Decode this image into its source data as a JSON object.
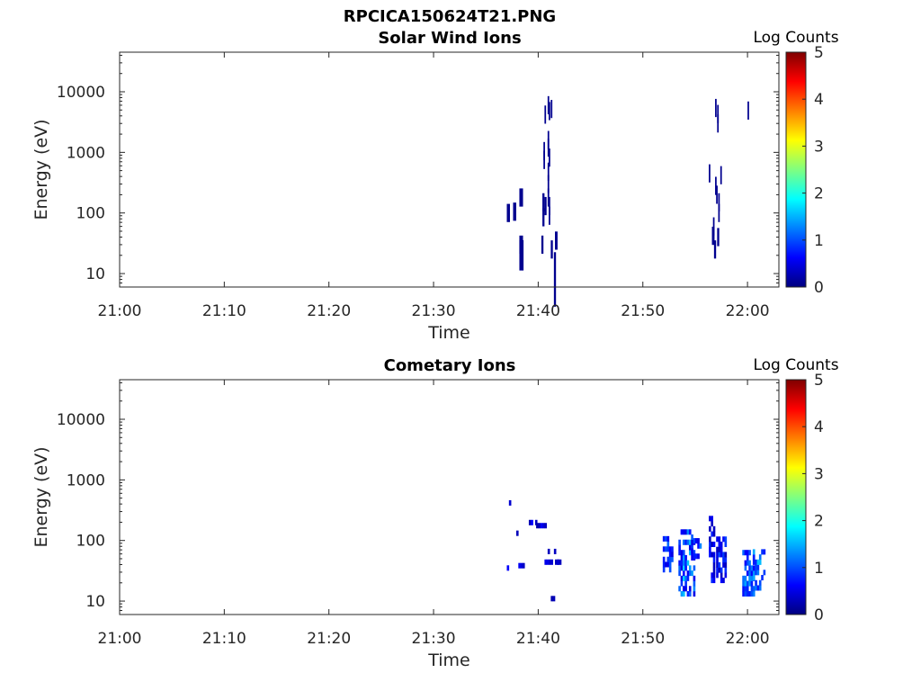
{
  "figure": {
    "title": "RPCICA150624T21.PNG"
  },
  "colormap": {
    "name": "jet",
    "stops": [
      "#00007f",
      "#0000ff",
      "#00ffff",
      "#ffff00",
      "#ff0000",
      "#7f0000"
    ]
  },
  "chart_data": [
    {
      "type": "heatmap",
      "title": "Solar Wind Ions",
      "xlabel": "Time",
      "ylabel": "Energy (eV)",
      "x_unit": "minutes after 21:00",
      "xlim": [
        0,
        63
      ],
      "ylim": [
        6,
        45000
      ],
      "yscale": "log",
      "x_ticks": [
        0,
        10,
        20,
        30,
        40,
        50,
        60
      ],
      "x_tick_labels": [
        "21:00",
        "21:10",
        "21:20",
        "21:30",
        "21:40",
        "21:50",
        "22:00"
      ],
      "y_ticks": [
        10,
        100,
        1000,
        10000
      ],
      "y_tick_labels": [
        "10",
        "100",
        "1000",
        "10000"
      ],
      "colorbar": {
        "title": "Log Counts",
        "min": 0,
        "max": 5,
        "ticks": [
          "0",
          "1",
          "2",
          "3",
          "4",
          "5"
        ]
      },
      "cells": [
        [
          37.0,
          100,
          0.3,
          0.3
        ],
        [
          37.6,
          105,
          0.3,
          0.3
        ],
        [
          38.2,
          180,
          0.35,
          0.3
        ],
        [
          38.2,
          30,
          0.35,
          0.3
        ],
        [
          38.2,
          20,
          0.4,
          0.5
        ],
        [
          40.3,
          30,
          0.2,
          0.3
        ],
        [
          40.4,
          150,
          0.2,
          0.3
        ],
        [
          40.4,
          85,
          0.2,
          0.3
        ],
        [
          40.6,
          130,
          0.2,
          0.3
        ],
        [
          40.5,
          1050,
          0.15,
          0.3
        ],
        [
          40.5,
          750,
          0.15,
          0.3
        ],
        [
          40.6,
          4200,
          0.15,
          0.3
        ],
        [
          40.9,
          6000,
          0.15,
          0.3
        ],
        [
          40.9,
          1600,
          0.15,
          0.3
        ],
        [
          40.9,
          1200,
          0.15,
          0.3
        ],
        [
          40.9,
          480,
          0.15,
          0.3
        ],
        [
          40.9,
          300,
          0.15,
          0.3
        ],
        [
          40.9,
          180,
          0.15,
          0.3
        ],
        [
          41.0,
          820,
          0.15,
          0.3
        ],
        [
          41.0,
          130,
          0.15,
          0.3
        ],
        [
          41.0,
          90,
          0.15,
          0.3
        ],
        [
          41.0,
          4800,
          0.15,
          0.3
        ],
        [
          41.2,
          5200,
          0.15,
          0.3
        ],
        [
          41.2,
          25,
          0.2,
          0.3
        ],
        [
          41.6,
          35,
          0.25,
          0.3
        ],
        [
          41.5,
          8,
          0.2,
          0.9
        ],
        [
          56.3,
          450,
          0.15,
          0.3
        ],
        [
          56.6,
          42,
          0.25,
          0.3
        ],
        [
          56.7,
          60,
          0.15,
          0.3
        ],
        [
          56.8,
          25,
          0.2,
          0.3
        ],
        [
          56.9,
          5400,
          0.15,
          0.3
        ],
        [
          56.9,
          280,
          0.15,
          0.3
        ],
        [
          57.0,
          200,
          0.15,
          0.3
        ],
        [
          57.1,
          4300,
          0.15,
          0.3
        ],
        [
          57.1,
          3000,
          0.15,
          0.3
        ],
        [
          57.1,
          40,
          0.2,
          0.3
        ],
        [
          57.2,
          150,
          0.15,
          0.3
        ],
        [
          57.2,
          100,
          0.15,
          0.3
        ],
        [
          57.4,
          420,
          0.15,
          0.3
        ],
        [
          60.0,
          4900,
          0.15,
          0.3
        ]
      ]
    },
    {
      "type": "heatmap",
      "title": "Cometary Ions",
      "xlabel": "Time",
      "ylabel": "Energy (eV)",
      "x_unit": "minutes after 21:00",
      "xlim": [
        0,
        63
      ],
      "ylim": [
        6,
        45000
      ],
      "yscale": "log",
      "x_ticks": [
        0,
        10,
        20,
        30,
        40,
        50,
        60
      ],
      "x_tick_labels": [
        "21:00",
        "21:10",
        "21:20",
        "21:30",
        "21:40",
        "21:50",
        "22:00"
      ],
      "y_ticks": [
        10,
        100,
        1000,
        10000
      ],
      "y_tick_labels": [
        "10",
        "100",
        "1000",
        "10000"
      ],
      "colorbar": {
        "title": "Log Counts",
        "min": 0,
        "max": 5,
        "ticks": [
          "0",
          "1",
          "2",
          "3",
          "4",
          "5"
        ]
      },
      "blobs": [
        [
          37.0,
          380,
          6,
          0.5,
          0.15,
          [
            0.2,
            0.6
          ]
        ],
        [
          36.6,
          32,
          8,
          0.9,
          0.1,
          [
            0.2,
            0.7
          ]
        ],
        [
          37.9,
          35,
          10,
          0.9,
          0.15,
          [
            0.3,
            0.7
          ]
        ],
        [
          37.5,
          120,
          40,
          0.6,
          0.05,
          [
            0.2,
            0.5
          ]
        ],
        [
          38.9,
          180,
          45,
          1.2,
          0.15,
          [
            0.2,
            0.7
          ]
        ],
        [
          39.8,
          160,
          60,
          1.0,
          0.15,
          [
            0.2,
            0.6
          ]
        ],
        [
          40.5,
          60,
          12,
          1.2,
          0.15,
          [
            0.2,
            0.5
          ]
        ],
        [
          40.6,
          40,
          25,
          1.4,
          0.2,
          [
            0.3,
            0.7
          ]
        ],
        [
          41.0,
          10,
          7,
          0.6,
          0.05,
          [
            0.2,
            0.5
          ]
        ],
        [
          41.8,
          40,
          45,
          0.6,
          0.15,
          [
            0.2,
            0.5
          ]
        ],
        [
          51.9,
          30,
          120,
          0.9,
          0.2,
          [
            0.5,
            1.2
          ]
        ],
        [
          53.4,
          12,
          150,
          1.6,
          0.2,
          [
            0.5,
            1.7
          ]
        ],
        [
          54.6,
          50,
          110,
          0.9,
          0.2,
          [
            0.5,
            1.3
          ]
        ],
        [
          56.3,
          20,
          260,
          0.6,
          0.15,
          [
            0.3,
            0.9
          ]
        ],
        [
          57.0,
          20,
          120,
          0.9,
          0.2,
          [
            0.3,
            1.0
          ]
        ],
        [
          59.5,
          12,
          75,
          1.2,
          0.15,
          [
            0.6,
            1.5
          ]
        ],
        [
          60.5,
          15,
          75,
          1.2,
          0.15,
          [
            0.7,
            1.6
          ]
        ]
      ]
    }
  ]
}
